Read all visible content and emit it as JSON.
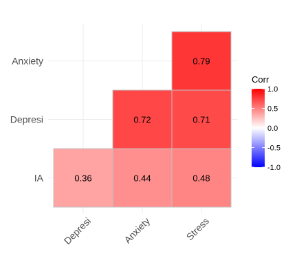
{
  "chart_data": {
    "type": "heatmap",
    "x_categories": [
      "Depresi",
      "Anxiety",
      "Stress"
    ],
    "y_categories": [
      "IA",
      "Depresi",
      "Anxiety"
    ],
    "cells": [
      {
        "x": "Depresi",
        "y": "IA",
        "value": 0.36,
        "label": "0.36"
      },
      {
        "x": "Anxiety",
        "y": "IA",
        "value": 0.44,
        "label": "0.44"
      },
      {
        "x": "Stress",
        "y": "IA",
        "value": 0.48,
        "label": "0.48"
      },
      {
        "x": "Anxiety",
        "y": "Depresi",
        "value": 0.72,
        "label": "0.72"
      },
      {
        "x": "Stress",
        "y": "Depresi",
        "value": 0.71,
        "label": "0.71"
      },
      {
        "x": "Stress",
        "y": "Anxiety",
        "value": 0.79,
        "label": "0.79"
      }
    ],
    "legend": {
      "title": "Corr",
      "range": [
        -1,
        1
      ],
      "ticks": [
        1.0,
        0.5,
        0.0,
        -0.5,
        -1.0
      ],
      "tick_labels": [
        "1.0",
        "0.5",
        "0.0",
        "-0.5",
        "-1.0"
      ],
      "placement": "right"
    },
    "colors": {
      "low": "#0000ff",
      "mid": "#ffffff",
      "high": "#ff0000",
      "grid": "#ebebeb",
      "cell_border": "#c0c0c0"
    },
    "grid": true,
    "x_tick_rotation": 45
  }
}
